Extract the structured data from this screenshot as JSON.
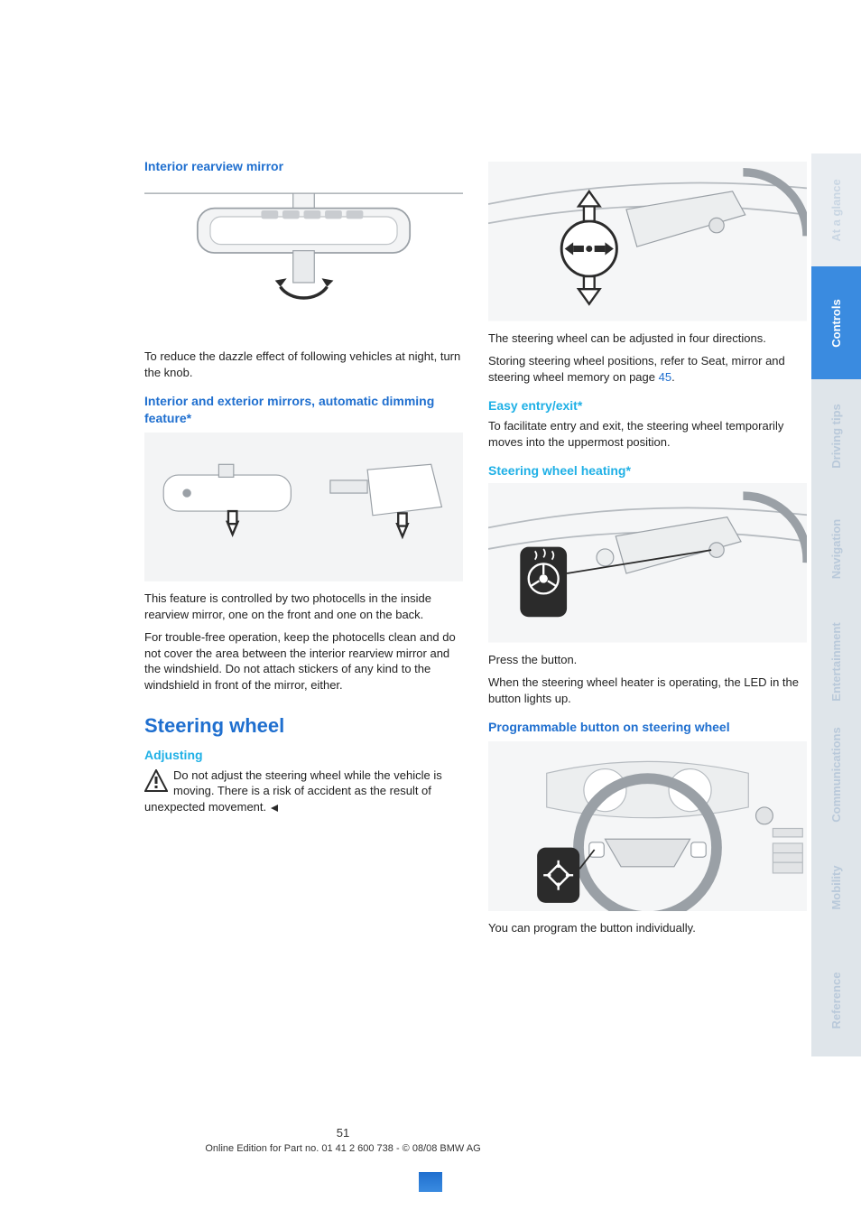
{
  "colors": {
    "heading_blue": "#1f6fcf",
    "sub_cyan": "#1fb0e6",
    "text": "#222222",
    "illus_stroke": "#9aa0a6",
    "illus_fill": "#f3f4f5",
    "tab_active_bg": "#3a8be0",
    "tab_active_text": "#ffffff",
    "tab_inactive_bg": "#dfe5ea",
    "tab_inactive_text": "#b9c9da",
    "glance_bg": "#e9edf1",
    "glance_text": "#c9d6e3"
  },
  "left": {
    "h1": "Interior rearview mirror",
    "p1": "To reduce the dazzle effect of following vehicles at night, turn the knob.",
    "h2": "Interior and exterior mirrors, automatic dimming feature*",
    "p2a": "This feature is controlled by two photocells in the inside rearview mirror, one on the front and one on the back.",
    "p2b": "For trouble-free operation, keep the photocells clean and do not cover the area between the interior rearview mirror and the windshield. Do not attach stickers of any kind to the windshield in front of the mirror, either.",
    "h3": "Steering wheel",
    "sub_adjusting": "Adjusting",
    "warn": "Do not adjust the steering wheel while the vehicle is moving. There is a risk of accident as the result of unexpected movement."
  },
  "right": {
    "p1": "The steering wheel can be adjusted in four directions.",
    "p2a": "Storing steering wheel positions, refer to Seat, mirror and steering wheel memory on page ",
    "p2_link": "45",
    "p2b": ".",
    "sub_easy": "Easy entry/exit*",
    "p3": "To facilitate entry and exit, the steering wheel temporarily moves into the uppermost position.",
    "sub_heat": "Steering wheel heating*",
    "p4a": "Press the button.",
    "p4b": "When the steering wheel heater is operating, the LED in the button lights up.",
    "h_prog": "Programmable button on steering wheel",
    "p5": "You can program the button individually."
  },
  "sidebar": [
    {
      "label": "At a glance",
      "bg": "#e9edf1",
      "text": "#c9d6e3"
    },
    {
      "label": "Controls",
      "bg": "#3a8be0",
      "text": "#ffffff"
    },
    {
      "label": "Driving tips",
      "bg": "#dfe5ea",
      "text": "#b9c9da"
    },
    {
      "label": "Navigation",
      "bg": "#dfe5ea",
      "text": "#b9c9da"
    },
    {
      "label": "Entertainment",
      "bg": "#dfe5ea",
      "text": "#b9c9da"
    },
    {
      "label": "Communications",
      "bg": "#dfe5ea",
      "text": "#b9c9da"
    },
    {
      "label": "Mobility",
      "bg": "#dfe5ea",
      "text": "#b9c9da"
    },
    {
      "label": "Reference",
      "bg": "#dfe5ea",
      "text": "#b9c9da"
    }
  ],
  "footer": {
    "page": "51",
    "line": "Online Edition for Part no. 01 41 2 600 738 - © 08/08 BMW AG"
  }
}
